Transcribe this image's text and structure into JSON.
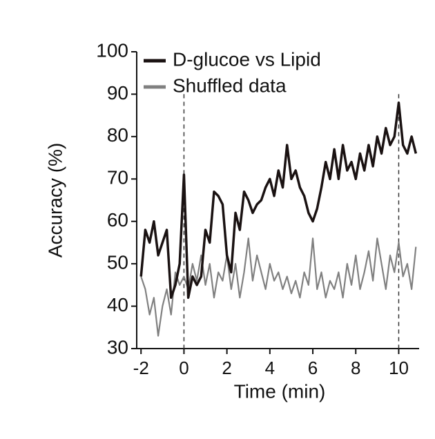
{
  "chart_data": {
    "type": "line",
    "xlabel": "Time (min)",
    "ylabel": "Accuracy (%)",
    "x": [
      -2,
      -1.8,
      -1.6,
      -1.4,
      -1.2,
      -1,
      -0.8,
      -0.6,
      -0.4,
      -0.2,
      0,
      0.2,
      0.4,
      0.6,
      0.8,
      1,
      1.2,
      1.4,
      1.6,
      1.8,
      2,
      2.2,
      2.4,
      2.6,
      2.8,
      3,
      3.2,
      3.4,
      3.6,
      3.8,
      4,
      4.2,
      4.4,
      4.6,
      4.8,
      5,
      5.2,
      5.4,
      5.6,
      5.8,
      6,
      6.2,
      6.4,
      6.6,
      6.8,
      7,
      7.2,
      7.4,
      7.6,
      7.8,
      8,
      8.2,
      8.4,
      8.6,
      8.8,
      9,
      9.2,
      9.4,
      9.6,
      9.8,
      10,
      10.2,
      10.4,
      10.6,
      10.8
    ],
    "series": [
      {
        "name": "D-glucoe vs Lipid",
        "color": "#1a1212",
        "values": [
          47,
          58,
          55,
          60,
          52,
          55,
          58,
          42,
          45,
          50,
          71,
          42,
          47,
          45,
          47,
          58,
          55,
          67,
          66,
          64,
          52,
          48,
          62,
          58,
          67,
          65,
          62,
          64,
          65,
          68,
          70,
          66,
          72,
          68,
          78,
          70,
          72,
          68,
          66,
          62,
          60,
          63,
          68,
          74,
          70,
          77,
          70,
          78,
          72,
          74,
          70,
          76,
          72,
          78,
          73,
          80,
          76,
          82,
          78,
          80,
          88,
          78,
          76,
          80,
          76
        ]
      },
      {
        "name": "Shuffled data",
        "color": "#808080",
        "values": [
          47,
          44,
          38,
          42,
          33,
          40,
          44,
          38,
          48,
          45,
          47,
          44,
          50,
          46,
          52,
          45,
          50,
          42,
          48,
          46,
          52,
          44,
          50,
          42,
          48,
          56,
          46,
          52,
          48,
          44,
          50,
          46,
          48,
          44,
          47,
          43,
          46,
          42,
          48,
          45,
          56,
          44,
          48,
          42,
          46,
          44,
          48,
          42,
          50,
          45,
          52,
          44,
          48,
          53,
          46,
          56,
          50,
          44,
          52,
          48,
          55,
          47,
          50,
          44,
          54
        ]
      }
    ],
    "vlines": [
      0,
      10
    ],
    "xlim": [
      -2.2,
      10.95
    ],
    "xticks": [
      -2,
      0,
      2,
      4,
      6,
      8,
      10
    ],
    "ylim": [
      30,
      100
    ],
    "yticks": [
      30,
      40,
      50,
      60,
      70,
      80,
      90,
      100
    ],
    "legend": "top"
  }
}
